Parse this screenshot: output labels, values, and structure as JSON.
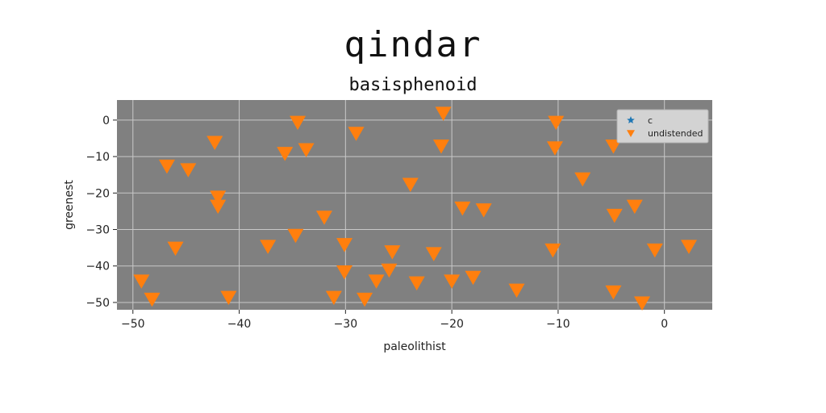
{
  "chart_data": {
    "type": "scatter",
    "title": "qindar",
    "subtitle": "basisphenoid",
    "xlabel": "paleolithist",
    "ylabel": "greenest",
    "xlim": [
      -51.5,
      4.5
    ],
    "ylim": [
      -52,
      5.5
    ],
    "xticks": [
      -50,
      -40,
      -30,
      -20,
      -10,
      0
    ],
    "yticks": [
      0,
      -10,
      -20,
      -30,
      -40,
      -50
    ],
    "grid": true,
    "legend_position": "top-right",
    "colors": {
      "plot_bg": "#808080",
      "grid": "#c8c8c8",
      "series_c": "#1f77b4",
      "series_undistended": "#ff7f0e"
    },
    "series": [
      {
        "name": "c",
        "marker": "star",
        "color": "#1f77b4",
        "points": []
      },
      {
        "name": "undistended",
        "marker": "triangle-down",
        "color": "#ff7f0e",
        "points": [
          [
            -20.8,
            2
          ],
          [
            -10.2,
            -0.5
          ],
          [
            -34.5,
            -0.5
          ],
          [
            -29,
            -3.5
          ],
          [
            -42.3,
            -6
          ],
          [
            -35.7,
            -9
          ],
          [
            -33.7,
            -8
          ],
          [
            -21,
            -7
          ],
          [
            -10.3,
            -7.5
          ],
          [
            -4.8,
            -7
          ],
          [
            -46.8,
            -12.5
          ],
          [
            -44.8,
            -13.5
          ],
          [
            -7.7,
            -16
          ],
          [
            -23.9,
            -17.5
          ],
          [
            -42,
            -21
          ],
          [
            -42,
            -23.5
          ],
          [
            -19,
            -24
          ],
          [
            -17,
            -24.5
          ],
          [
            -2.8,
            -23.5
          ],
          [
            -4.7,
            -26
          ],
          [
            -32,
            -26.5
          ],
          [
            -34.7,
            -31.5
          ],
          [
            -37.3,
            -34.5
          ],
          [
            -46,
            -35
          ],
          [
            -30.1,
            -34
          ],
          [
            -25.6,
            -36
          ],
          [
            -21.7,
            -36.5
          ],
          [
            -10.5,
            -35.5
          ],
          [
            -0.9,
            -35.5
          ],
          [
            2.3,
            -34.5
          ],
          [
            -30.1,
            -41.5
          ],
          [
            -25.9,
            -41
          ],
          [
            -27.1,
            -44
          ],
          [
            -23.3,
            -44.5
          ],
          [
            -20,
            -44
          ],
          [
            -18,
            -43
          ],
          [
            -49.2,
            -44
          ],
          [
            -48.2,
            -49
          ],
          [
            -41,
            -48.5
          ],
          [
            -31.1,
            -48.5
          ],
          [
            -28.2,
            -49
          ],
          [
            -13.9,
            -46.5
          ],
          [
            -4.8,
            -47
          ],
          [
            -2.1,
            -50
          ]
        ]
      }
    ]
  }
}
